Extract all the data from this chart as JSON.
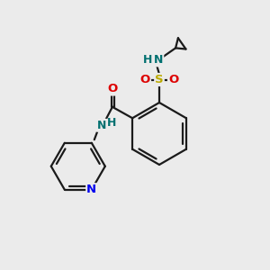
{
  "background_color": "#ebebeb",
  "bond_color": "#1a1a1a",
  "atom_colors": {
    "N_teal": "#007070",
    "N_blue": "#0000ee",
    "O": "#dd0000",
    "S": "#bbaa00",
    "H_teal": "#007070",
    "C": "#1a1a1a"
  },
  "figsize": [
    3.0,
    3.0
  ],
  "dpi": 100,
  "xlim": [
    0,
    10
  ],
  "ylim": [
    0,
    10
  ]
}
